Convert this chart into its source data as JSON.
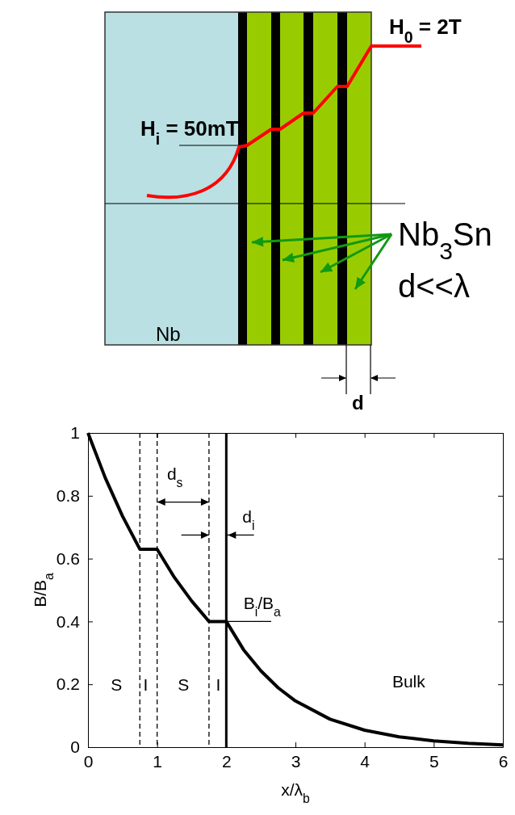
{
  "chart_data": [
    {
      "type": "other",
      "annotations": [
        "H$_{0}$ = 2T",
        "H$_{i}$ = 50mT",
        "Nb",
        "Nb$_{3}$Sn",
        "d<<λ",
        "d"
      ]
    },
    {
      "type": "line",
      "xlabel": "x/λ$_{b}$",
      "ylabel": "B/B$_{a}$",
      "xlim": [
        0,
        6
      ],
      "ylim": [
        0,
        1
      ],
      "xticks": [
        0,
        1,
        2,
        3,
        4,
        5,
        6
      ],
      "yticks": [
        0,
        0.2,
        0.4,
        0.6,
        0.8,
        1
      ],
      "x": [
        0,
        0.25,
        0.5,
        0.75,
        1,
        1.25,
        1.5,
        1.75,
        2,
        2.25,
        2.5,
        2.75,
        3,
        3.5,
        4,
        4.5,
        5,
        5.5,
        6
      ],
      "series": [
        {
          "color": "#000000",
          "values": [
            1,
            0.857,
            0.735,
            0.63,
            0.63,
            0.54,
            0.465,
            0.4,
            0.4,
            0.31,
            0.243,
            0.189,
            0.147,
            0.089,
            0.054,
            0.033,
            0.02,
            0.012,
            0.007
          ]
        }
      ],
      "ref_lines": [
        {
          "axis": "x",
          "value": 0.75,
          "line_style": "dashed",
          "color": "#000000"
        },
        {
          "axis": "x",
          "value": 1,
          "line_style": "dashed",
          "color": "#000000"
        },
        {
          "axis": "x",
          "value": 1.75,
          "line_style": "dashed",
          "color": "#000000"
        },
        {
          "axis": "x",
          "value": 2,
          "line_style": "solid",
          "color": "#000000"
        }
      ],
      "annotations": [
        {
          "text": "d$_{s}$",
          "x": 1.75,
          "y": 0.78
        },
        {
          "text": "d$_{i}$",
          "x": 2,
          "y": 0.675
        },
        "B$_{i}$/B$_{a}$",
        "S",
        "I",
        "S",
        "I",
        "Bulk"
      ]
    }
  ]
}
